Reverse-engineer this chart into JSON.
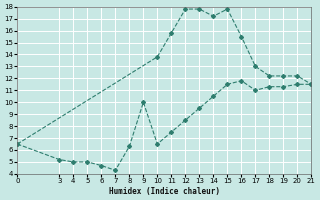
{
  "xlabel": "Humidex (Indice chaleur)",
  "bg_color": "#c8e8e4",
  "grid_color": "#ffffff",
  "line_color": "#2e7d6e",
  "xlim": [
    0,
    21
  ],
  "ylim": [
    4,
    18
  ],
  "xticks": [
    0,
    3,
    4,
    5,
    6,
    7,
    8,
    9,
    10,
    11,
    12,
    13,
    14,
    15,
    16,
    17,
    18,
    19,
    20,
    21
  ],
  "yticks": [
    4,
    5,
    6,
    7,
    8,
    9,
    10,
    11,
    12,
    13,
    14,
    15,
    16,
    17,
    18
  ],
  "line1_x": [
    0,
    3,
    4,
    5,
    6,
    7,
    8,
    9,
    10,
    11,
    12,
    13,
    14,
    15,
    16,
    17,
    18,
    19,
    20,
    21
  ],
  "line1_y": [
    6.5,
    5.2,
    5.0,
    5.0,
    4.7,
    4.3,
    6.3,
    10.0,
    6.5,
    7.5,
    8.5,
    9.5,
    10.5,
    11.5,
    11.8,
    11.0,
    11.3,
    11.3,
    11.5,
    11.5
  ],
  "line2_x": [
    0,
    10,
    11,
    12,
    13,
    14,
    15,
    16,
    17,
    18,
    19,
    20,
    21
  ],
  "line2_y": [
    6.5,
    13.8,
    15.8,
    17.8,
    17.8,
    17.2,
    17.8,
    15.5,
    13.0,
    12.2,
    12.2,
    12.2,
    11.5
  ]
}
